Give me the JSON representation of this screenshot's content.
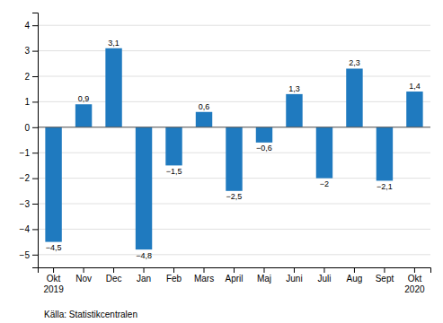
{
  "chart_data": {
    "type": "bar",
    "categories": [
      "Okt\n2019",
      "Nov",
      "Dec",
      "Jan",
      "Feb",
      "Mars",
      "April",
      "Maj",
      "Juni",
      "Juli",
      "Aug",
      "Sept",
      "Okt\n2020"
    ],
    "values": [
      -4.5,
      0.9,
      3.1,
      -4.8,
      -1.5,
      0.6,
      -2.5,
      -0.6,
      1.3,
      -2.0,
      2.3,
      -2.1,
      1.4
    ],
    "value_labels": [
      "−4,5",
      "0,9",
      "3,1",
      "−4,8",
      "−1,5",
      "0,6",
      "−2,5",
      "−0,6",
      "1,3",
      "−2",
      "2,3",
      "−2,1",
      "1,4"
    ],
    "data_labels": true,
    "color": "#1f7abf",
    "ylim": [
      -5.5,
      4.5
    ],
    "yticks": [
      -5,
      -4,
      -3,
      -2,
      -1,
      0,
      1,
      2,
      3,
      4
    ],
    "grid": true,
    "annotations": [
      "Källa: Statistikcentralen"
    ]
  }
}
